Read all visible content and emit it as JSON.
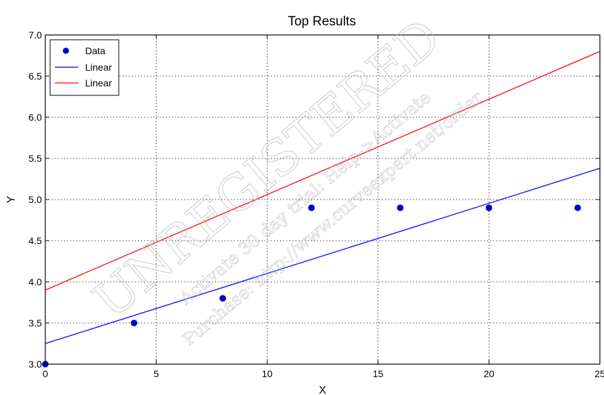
{
  "chart_data": {
    "type": "scatter",
    "title": "Top Results",
    "xlabel": "X",
    "ylabel": "Y",
    "xlim": [
      0,
      25
    ],
    "ylim": [
      3.0,
      7.0
    ],
    "x_ticks": [
      "0",
      "5",
      "10",
      "15",
      "20",
      "25"
    ],
    "y_ticks": [
      "3.0",
      "3.5",
      "4.0",
      "4.5",
      "5.0",
      "5.5",
      "6.0",
      "6.5",
      "7.0"
    ],
    "grid": true,
    "legend_position": "top-left",
    "points": {
      "name": "Data",
      "color": "#0000cc",
      "x": [
        0,
        4,
        8,
        12,
        16,
        20,
        24
      ],
      "y": [
        3.0,
        3.5,
        3.8,
        4.9,
        4.9,
        4.9,
        4.9
      ]
    },
    "lines": [
      {
        "name": "Linear",
        "color": "#2222ff",
        "x": [
          0,
          25
        ],
        "y": [
          3.25,
          5.38
        ]
      },
      {
        "name": "Linear",
        "color": "#ff2222",
        "x": [
          0,
          25
        ],
        "y": [
          3.9,
          6.8
        ]
      }
    ]
  },
  "watermark": {
    "main": "UNREGISTERED",
    "line1": "Activate 30 day trial: Help->Activate",
    "line2": "Purchase: http://www.curveexpert.net/order"
  }
}
